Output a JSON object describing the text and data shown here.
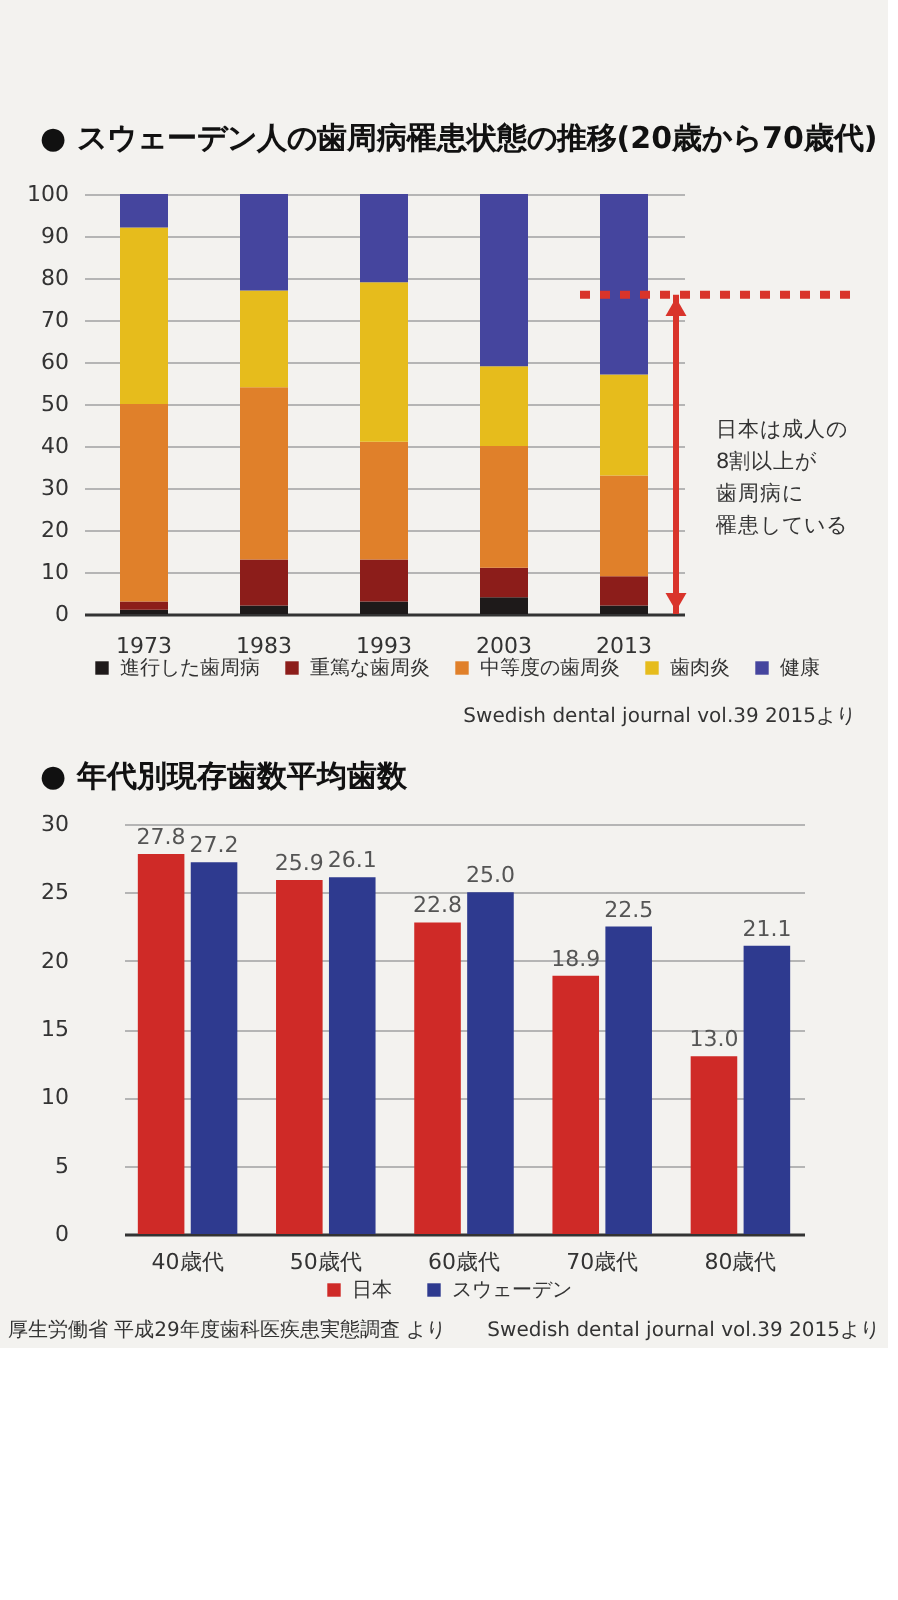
{
  "chart_data": [
    {
      "type": "bar",
      "title": "● スウェーデン人の歯周病罹患状態の推移(20歳から70歳代)",
      "categories": [
        "1973",
        "1983",
        "1993",
        "2003",
        "2013"
      ],
      "stacked": true,
      "series": [
        {
          "name": "進行した歯周病",
          "color": "#1e1a1a",
          "values": [
            1,
            2,
            3,
            4,
            2
          ]
        },
        {
          "name": "重篤な歯周炎",
          "color": "#8c1d1a",
          "values": [
            2,
            11,
            10,
            7,
            7
          ]
        },
        {
          "name": "中等度の歯周炎",
          "color": "#e0802a",
          "values": [
            47,
            41,
            28,
            29,
            24
          ]
        },
        {
          "name": "歯肉炎",
          "color": "#e6bc1c",
          "values": [
            42,
            23,
            38,
            19,
            24
          ]
        },
        {
          "name": "健康",
          "color": "#45459e",
          "values": [
            8,
            23,
            21,
            41,
            43
          ]
        }
      ],
      "ylim": [
        0,
        100
      ],
      "yticks": [
        0,
        10,
        20,
        30,
        40,
        50,
        60,
        70,
        80,
        90,
        100
      ],
      "grid": "y",
      "legend": "bottom",
      "ref_lines": [
        {
          "axis": "y",
          "value": 76,
          "color": "#d9342b",
          "line_style": "dotted"
        }
      ],
      "annotations": [
        "日本は成人の8割以上が歯周病に罹患している",
        "Swedish dental journal vol.39 2015より"
      ]
    },
    {
      "type": "bar",
      "title": "● 年代別現存歯数平均歯数",
      "categories": [
        "40歳代",
        "50歳代",
        "60歳代",
        "70歳代",
        "80歳代"
      ],
      "series": [
        {
          "name": "日本",
          "color": "#cf2a27",
          "values": [
            27.8,
            25.9,
            22.8,
            18.9,
            13.0
          ],
          "value_labels": [
            "27.8",
            "25.9",
            "22.8",
            "18.9",
            "13.0"
          ]
        },
        {
          "name": "スウェーデン",
          "color": "#2e3a8f",
          "values": [
            27.2,
            26.1,
            25.0,
            22.5,
            21.1
          ],
          "value_labels": [
            "27.2",
            "26.1",
            "25.0",
            "22.5",
            "21.1"
          ]
        }
      ],
      "ylim": [
        0,
        30
      ],
      "yticks": [
        0,
        5,
        10,
        15,
        20,
        25,
        30
      ],
      "grid": "y",
      "legend": "bottom",
      "annotations": [
        "厚生労働省 平成29年度歯科医疾患実態調査 より",
        "Swedish dental journal vol.39 2015より"
      ]
    }
  ]
}
